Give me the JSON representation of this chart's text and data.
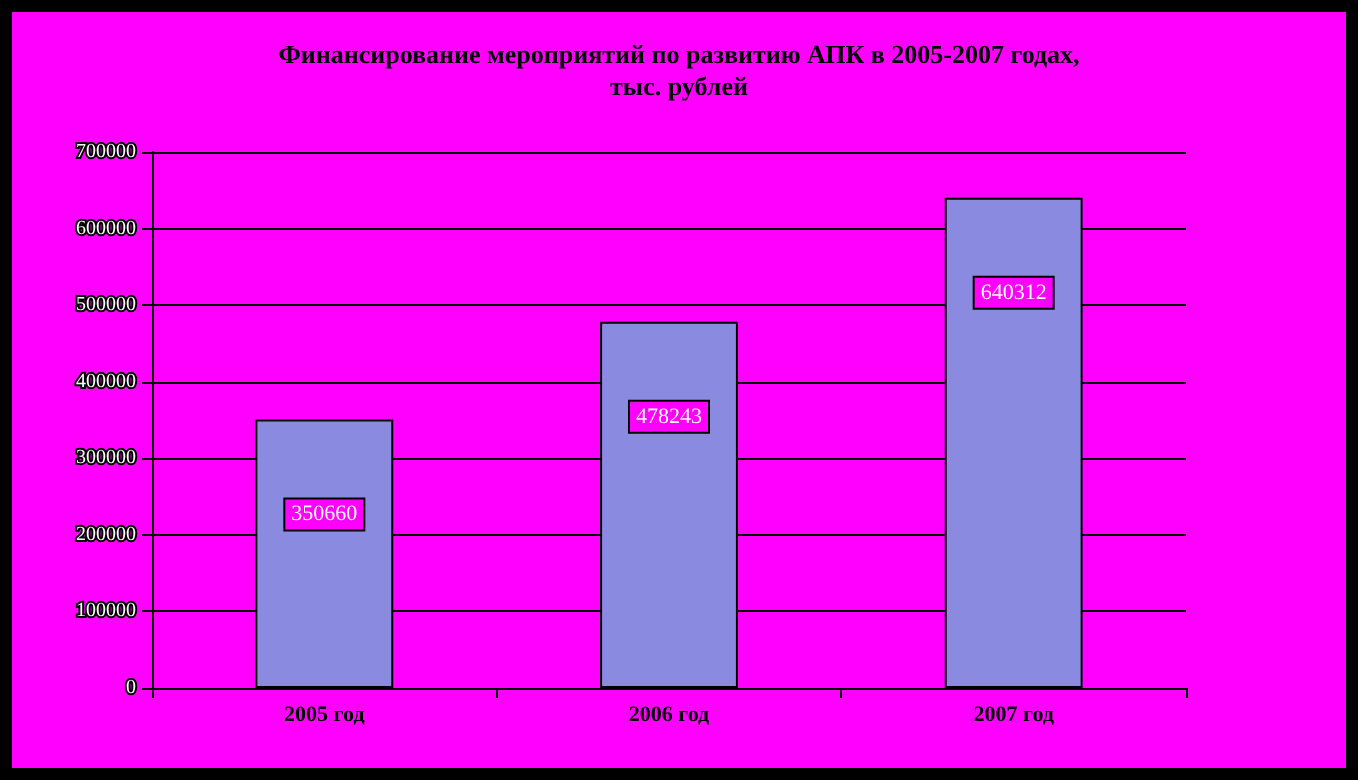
{
  "chart_data": {
    "type": "bar",
    "title": "Финансирование мероприятий по развитию АПК в 2005-2007 годах,\nтыс. рублей",
    "categories": [
      "2005 год",
      "2006 год",
      "2007 год"
    ],
    "values": [
      350660,
      478243,
      640312
    ],
    "color": "#8a8ae0",
    "ylim": [
      0,
      700000
    ],
    "yticks": [
      0,
      100000,
      200000,
      300000,
      400000,
      500000,
      600000,
      700000
    ],
    "grid": "y",
    "data_labels": true
  }
}
